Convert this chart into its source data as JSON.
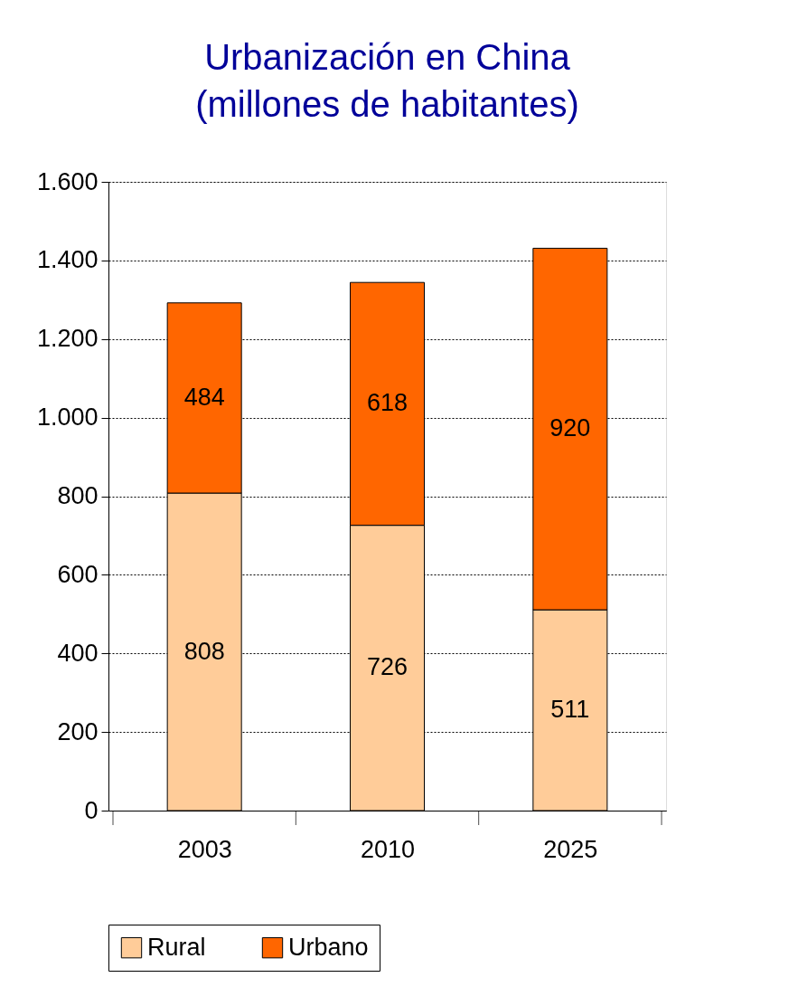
{
  "chart_data": {
    "type": "bar",
    "title": [
      "Urbanización en China",
      "(millones de habitantes)"
    ],
    "stacked": true,
    "categories": [
      "2003",
      "2010",
      "2025"
    ],
    "series": [
      {
        "name": "Rural",
        "color": "#ffcc99",
        "values": [
          808,
          726,
          511
        ]
      },
      {
        "name": "Urbano",
        "color": "#ff6600",
        "values": [
          484,
          618,
          920
        ]
      }
    ],
    "ylim": [
      0,
      1600
    ],
    "yticks": [
      0,
      200,
      400,
      600,
      800,
      {
        "value": 1000,
        "label": "1.000"
      },
      {
        "value": 1200,
        "label": "1.200"
      },
      {
        "value": 1400,
        "label": "1.400"
      },
      {
        "value": 1600,
        "label": "1.600"
      }
    ],
    "grid": "y",
    "legend": "bottom",
    "data_labels": true
  }
}
